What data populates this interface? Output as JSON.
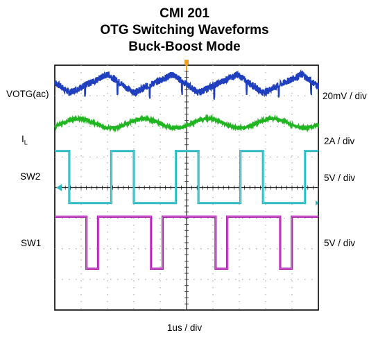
{
  "chart_data": {
    "type": "line",
    "title": "CMI 201",
    "subtitle": "OTG Switching Waveforms",
    "subtitle2": "Buck-Boost Mode",
    "xlabel": "1us / div",
    "x_divisions": 10,
    "y_divisions": 8,
    "grid": true,
    "series": [
      {
        "name": "VOTG(ac)",
        "scale": "20mV / div",
        "color": "#1f3fbf",
        "waveform": "sawtooth ripple with switching noise",
        "period_div": 2.45,
        "amplitude_div": 0.3,
        "level_div": 3.4
      },
      {
        "name": "I",
        "name_sub": "L",
        "scale": "2A / div",
        "color": "#22b522",
        "waveform": "sinusoidal ripple",
        "period_div": 2.45,
        "amplitude_div": 0.15,
        "level_div": 2.1
      },
      {
        "name": "SW2",
        "scale": "5V / div",
        "color": "#2ab8c0",
        "waveform": "square",
        "period_div": 2.45,
        "high_div": 1.2,
        "low_div": -0.5,
        "duty_high": 0.35
      },
      {
        "name": "SW1",
        "scale": "5V / div",
        "color": "#b026b0",
        "waveform": "square",
        "period_div": 2.45,
        "high_div": -0.95,
        "low_div": -2.65,
        "duty_high": 0.82
      }
    ]
  }
}
